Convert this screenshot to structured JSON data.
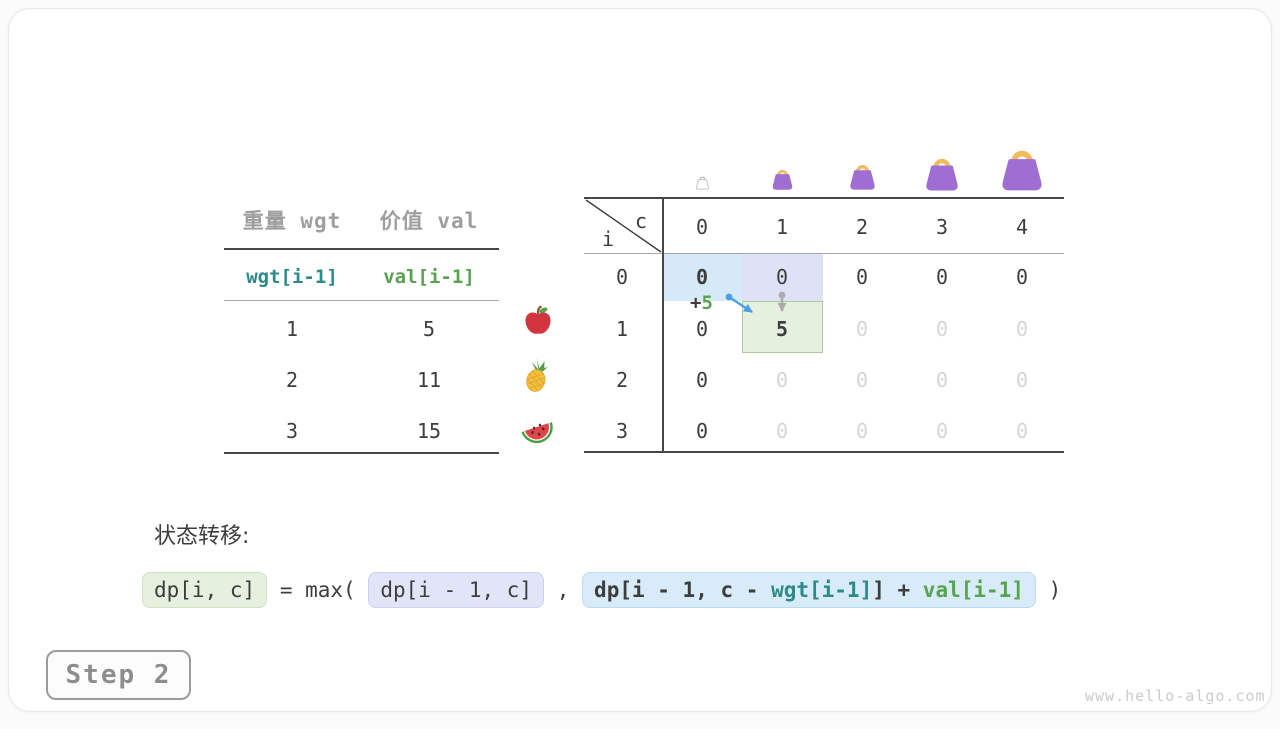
{
  "items_table": {
    "col_headers": [
      "重量 wgt",
      "价值 val"
    ],
    "index_row": {
      "wgt": "wgt[i-1]",
      "val": "val[i-1]"
    },
    "rows": [
      {
        "wgt": "1",
        "val": "5",
        "icon": "apple"
      },
      {
        "wgt": "2",
        "val": "11",
        "icon": "pineapple"
      },
      {
        "wgt": "3",
        "val": "15",
        "icon": "watermelon"
      }
    ]
  },
  "dp_table": {
    "corner": {
      "col_var": "c",
      "row_var": "i"
    },
    "col_headers": [
      "0",
      "1",
      "2",
      "3",
      "4"
    ],
    "row_headers": [
      "0",
      "1",
      "2",
      "3"
    ],
    "cells": [
      [
        "0",
        "0",
        "0",
        "0",
        "0"
      ],
      [
        "0",
        "5",
        "0",
        "0",
        "0"
      ],
      [
        "0",
        "0",
        "0",
        "0",
        "0"
      ],
      [
        "0",
        "0",
        "0",
        "0",
        "0"
      ]
    ],
    "cell_styles": [
      [
        "bold",
        "dark",
        "dark",
        "dark",
        "dark"
      ],
      [
        "dark",
        "bold",
        "light",
        "light",
        "light"
      ],
      [
        "dark",
        "light",
        "light",
        "light",
        "light"
      ],
      [
        "dark",
        "light",
        "light",
        "light",
        "light"
      ]
    ],
    "annotation": {
      "plus": "+",
      "value": "5"
    },
    "bag_capacities": [
      "0",
      "1",
      "2",
      "3",
      "4"
    ]
  },
  "transition": {
    "label": "状态转移:",
    "lhs": "dp[i, c]",
    "equals": "=",
    "max_open": "max(",
    "arg1": "dp[i - 1, c]",
    "comma": ",",
    "arg2": {
      "prefix": "dp[i - 1, c - ",
      "wgt": "wgt[i-1]",
      "mid": "] + ",
      "val": "val[i-1]"
    },
    "close": ")"
  },
  "step_badge": "Step 2",
  "watermark": "www.hello-algo.com",
  "colors": {
    "teal": "#2e8a8a",
    "green": "#57a34e",
    "arrow_blue": "#4aa0e0",
    "arrow_gray": "#ababab",
    "cell_blue": "#d5e9f7",
    "cell_purple": "#dfe2f6",
    "cell_green": "#e6f0df",
    "bag_purple": "#9e6ed3",
    "bag_handle": "#f2bc5e"
  }
}
